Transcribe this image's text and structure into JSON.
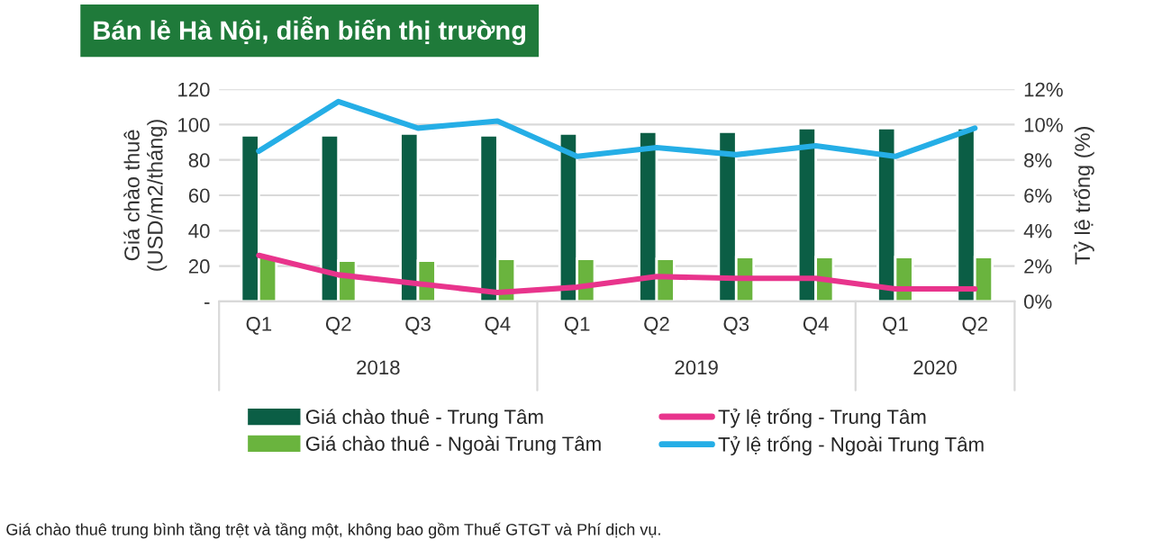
{
  "chart_data": {
    "type": "bar",
    "title": "Bán lẻ Hà Nội, diễn biến thị trường",
    "ylabel": "Giá chào thuê\n(USD/m2/tháng)",
    "y2label": "Tỷ lệ trống (%)",
    "categories": [
      "Q1",
      "Q2",
      "Q3",
      "Q4",
      "Q1",
      "Q2",
      "Q3",
      "Q4",
      "Q1",
      "Q2"
    ],
    "series": [
      {
        "name": "Giá chào thuê - Trung Tâm",
        "color": "#0b5e45",
        "values": [
          94,
          94,
          95,
          94,
          95,
          96,
          96,
          98,
          98,
          98
        ]
      },
      {
        "name": "Giá chào thuê - Ngoài Trung Tâm",
        "color": "#6ab43e",
        "values": [
          25,
          23,
          23,
          24,
          24,
          24,
          25,
          25,
          25,
          25
        ]
      },
      {
        "name": "Tỷ lệ trống - Trung Tâm",
        "color": "#e8348c",
        "type": "line",
        "axis": "y2",
        "values": [
          2.6,
          1.5,
          1.0,
          0.5,
          0.8,
          1.4,
          1.3,
          1.3,
          0.7,
          0.7
        ]
      },
      {
        "name": "Tỷ lệ trống - Ngoài Trung Tâm",
        "color": "#25aee6",
        "type": "line",
        "axis": "y2",
        "values": [
          8.5,
          11.3,
          9.8,
          10.2,
          8.2,
          8.7,
          8.3,
          8.8,
          8.2,
          9.8
        ]
      }
    ],
    "ylim": [
      0,
      120
    ],
    "yticks": [
      {
        "value": 0,
        "label": "-"
      },
      20,
      40,
      60,
      80,
      100,
      120
    ],
    "y2lim": [
      0,
      12
    ],
    "y2ticks": [
      {
        "value": 0,
        "label": "0%"
      },
      {
        "value": 2,
        "label": "2%"
      },
      {
        "value": 4,
        "label": "4%"
      },
      {
        "value": 6,
        "label": "6%"
      },
      {
        "value": 8,
        "label": "8%"
      },
      {
        "value": 10,
        "label": "10%"
      },
      {
        "value": 12,
        "label": "12%"
      }
    ],
    "grid": "y",
    "legend": "bottom",
    "marker": "none",
    "line_style": "solid",
    "annotations": [
      "2018",
      "2019",
      "2020",
      "Giá chào thuê trung bình tầng trệt và tầng một, không bao gồm Thuế GTGT và Phí dịch vụ."
    ]
  }
}
